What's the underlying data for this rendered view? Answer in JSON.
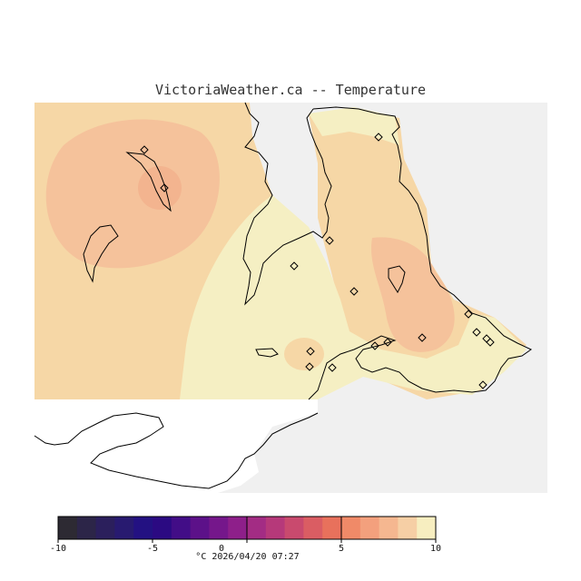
{
  "title": "VictoriaWeather.ca -- Temperature",
  "legend": {
    "unit": "°C",
    "timestamp": "2026/04/20 07:27",
    "ticks": [
      "-10",
      "-5",
      "0",
      "5",
      "10"
    ],
    "min": -10,
    "max": 10,
    "colors": [
      "#2d2a33",
      "#2c2548",
      "#2b1f5c",
      "#281a70",
      "#231182",
      "#2b0a82",
      "#420d87",
      "#5c1189",
      "#75178b",
      "#8e1f8a",
      "#a32c84",
      "#b6397a",
      "#c94a6e",
      "#da5d63",
      "#e8715c",
      "#f08a68",
      "#f3a07d",
      "#f5b790",
      "#f6cfa5",
      "#f7eec0"
    ]
  },
  "regions": {
    "land_color": "#f0f0f0",
    "warmer_color": "#f5c29b",
    "warm_color": "#f6d7a6",
    "mild_color": "#f5efc3"
  }
}
